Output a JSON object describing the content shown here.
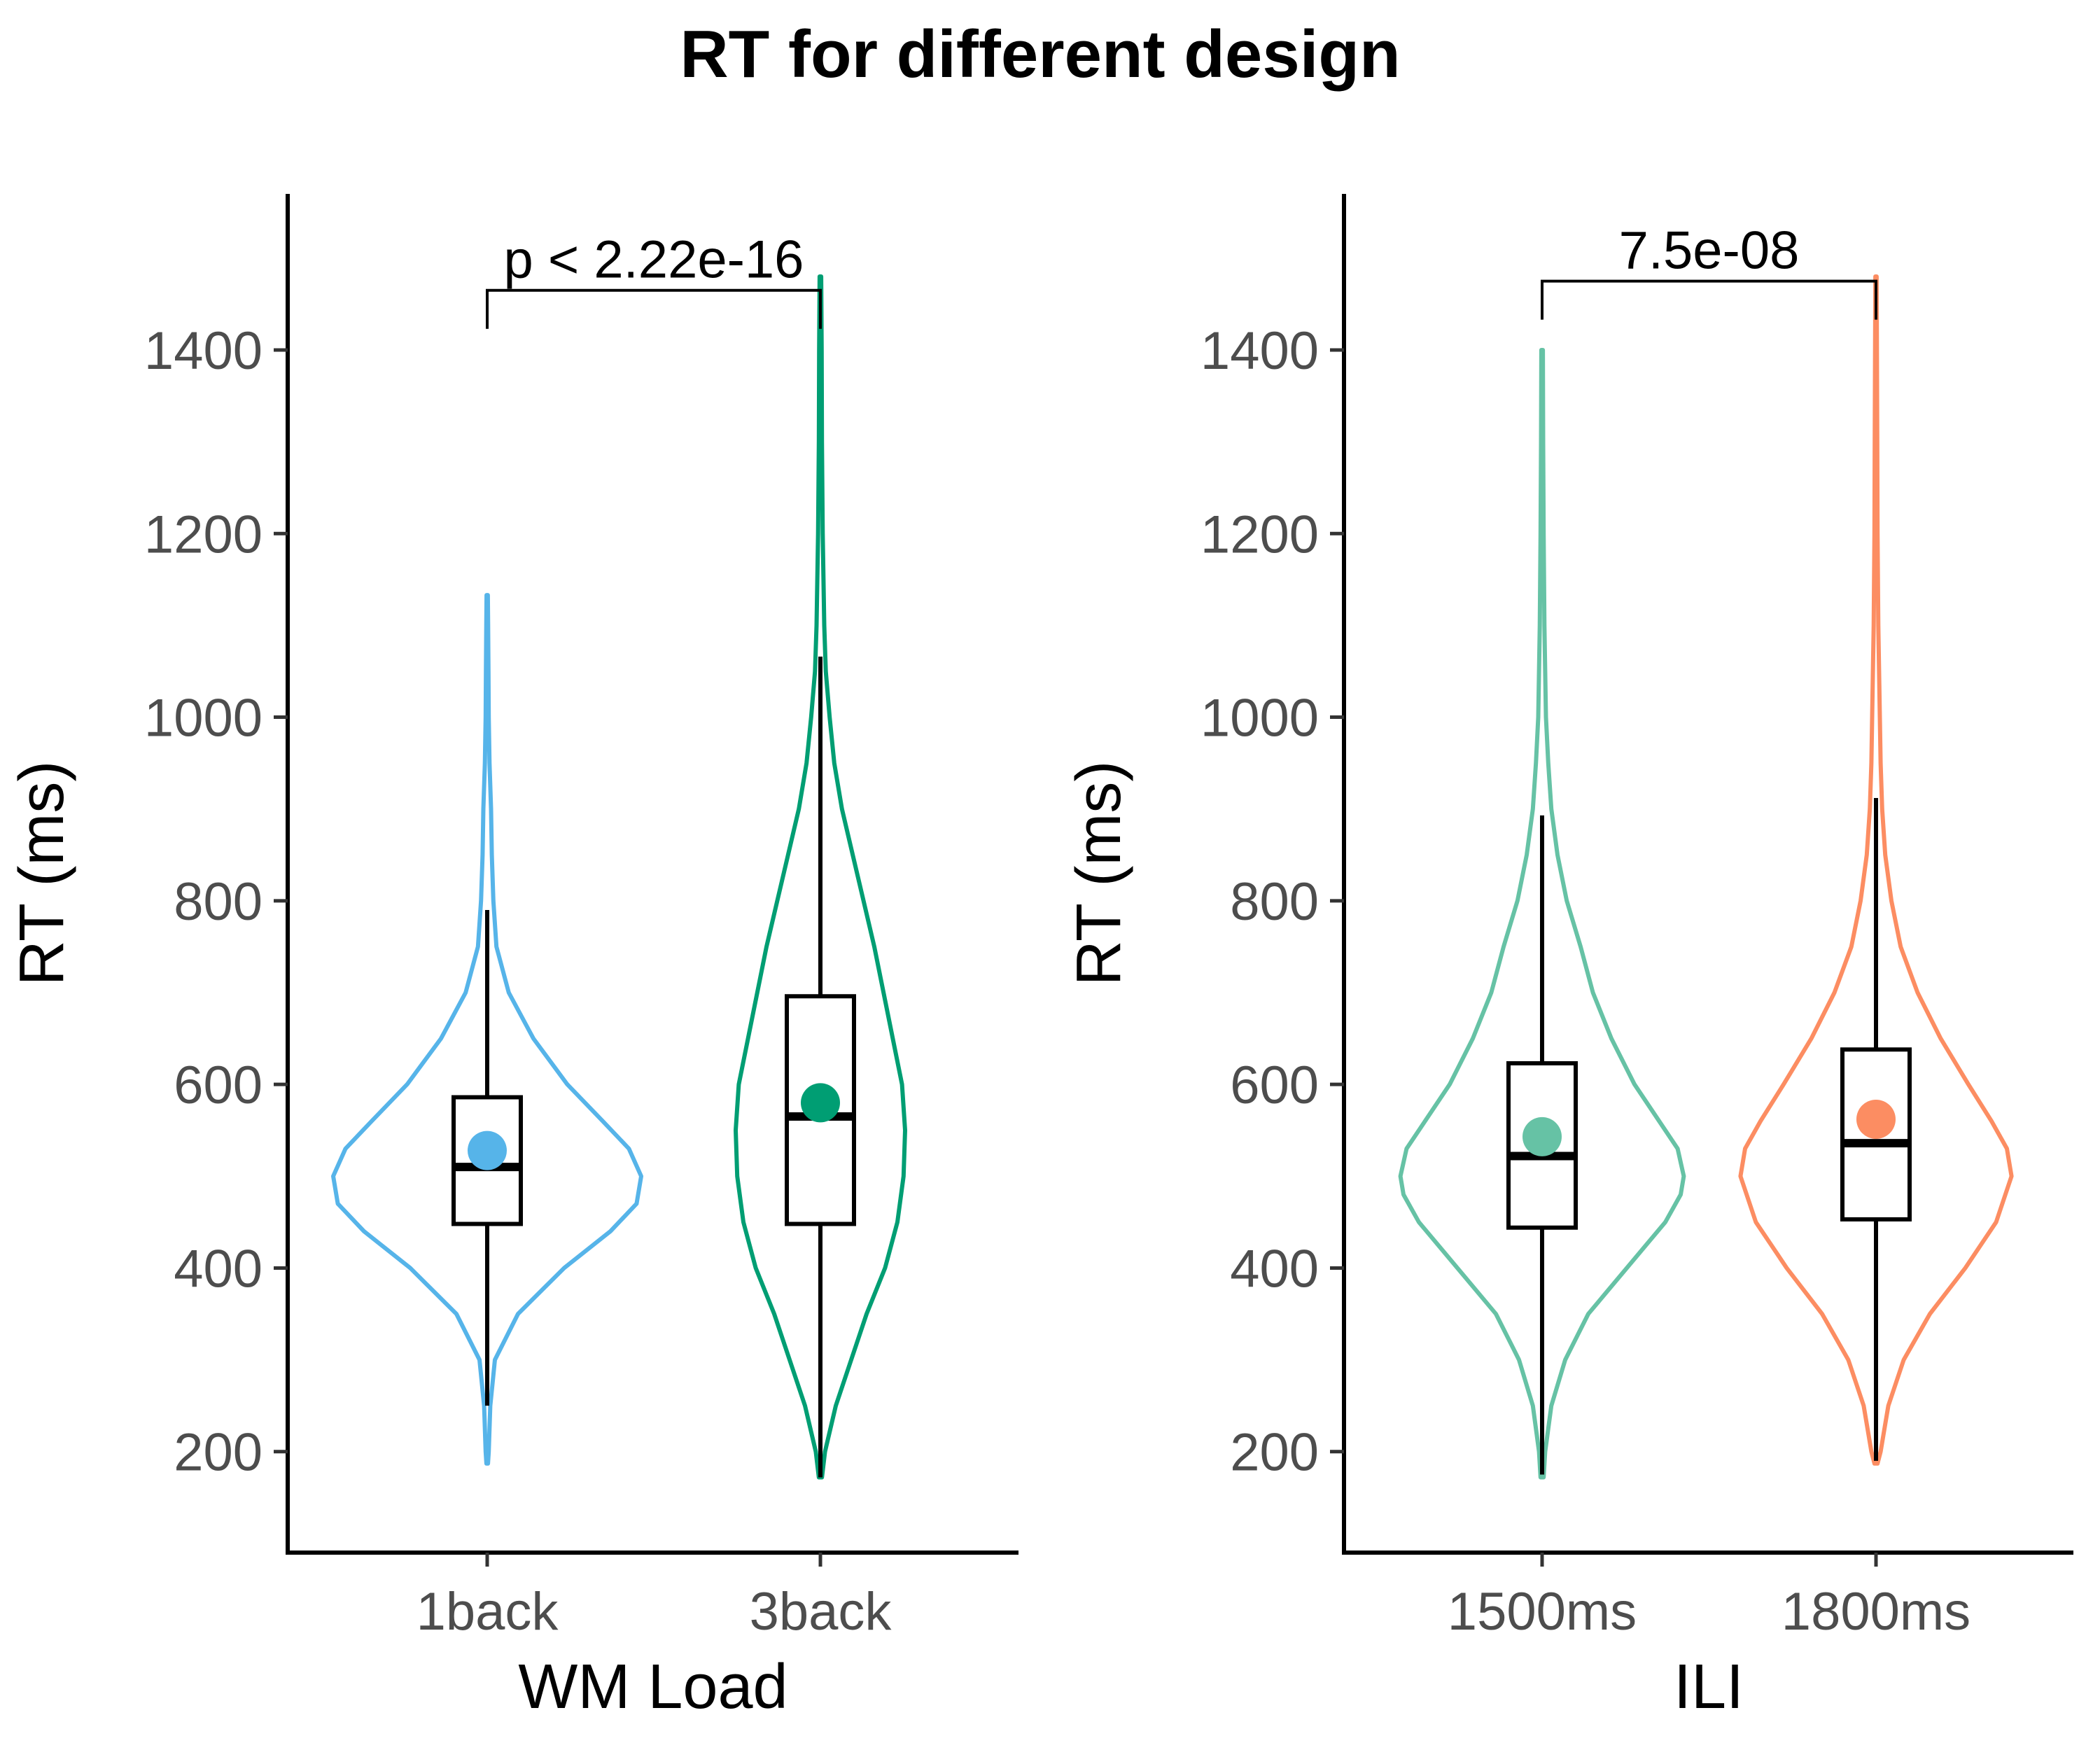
{
  "title": "RT for different design",
  "chart_data": [
    {
      "type": "violin",
      "xlabel": "WM Load",
      "ylabel": "RT (ms)",
      "ylim": [
        90,
        1570
      ],
      "yticks": [
        200,
        400,
        600,
        800,
        1000,
        1200,
        1400
      ],
      "categories": [
        "1back",
        "3back"
      ],
      "colors": [
        "#56B4E9",
        "#009E73"
      ],
      "comparison": {
        "label": "p < 2.22e-16",
        "y": 1465
      },
      "groups": [
        {
          "category": "1back",
          "mean": 528,
          "box": {
            "q1": 448,
            "median": 510,
            "q3": 586,
            "whisker_low": 250,
            "whisker_high": 790
          },
          "violin": [
            [
              187,
              0.005
            ],
            [
              200,
              0.01
            ],
            [
              250,
              0.02
            ],
            [
              300,
              0.05
            ],
            [
              350,
              0.2
            ],
            [
              400,
              0.5
            ],
            [
              440,
              0.8
            ],
            [
              470,
              0.97
            ],
            [
              500,
              1.0
            ],
            [
              530,
              0.92
            ],
            [
              560,
              0.75
            ],
            [
              600,
              0.52
            ],
            [
              650,
              0.3
            ],
            [
              700,
              0.14
            ],
            [
              750,
              0.06
            ],
            [
              800,
              0.04
            ],
            [
              850,
              0.03
            ],
            [
              900,
              0.025
            ],
            [
              950,
              0.015
            ],
            [
              1000,
              0.01
            ],
            [
              1050,
              0.008
            ],
            [
              1100,
              0.006
            ],
            [
              1133,
              0.004
            ]
          ]
        },
        {
          "category": "3back",
          "mean": 580,
          "box": {
            "q1": 448,
            "median": 565,
            "q3": 696,
            "whisker_low": 172,
            "whisker_high": 1066
          },
          "violin": [
            [
              172,
              0.01
            ],
            [
              200,
              0.03
            ],
            [
              250,
              0.1
            ],
            [
              300,
              0.2
            ],
            [
              350,
              0.3
            ],
            [
              400,
              0.42
            ],
            [
              450,
              0.5
            ],
            [
              500,
              0.54
            ],
            [
              550,
              0.55
            ],
            [
              600,
              0.53
            ],
            [
              650,
              0.47
            ],
            [
              700,
              0.41
            ],
            [
              750,
              0.35
            ],
            [
              800,
              0.28
            ],
            [
              850,
              0.21
            ],
            [
              900,
              0.14
            ],
            [
              950,
              0.09
            ],
            [
              1000,
              0.06
            ],
            [
              1050,
              0.035
            ],
            [
              1100,
              0.025
            ],
            [
              1200,
              0.015
            ],
            [
              1300,
              0.01
            ],
            [
              1400,
              0.008
            ],
            [
              1480,
              0.005
            ]
          ]
        }
      ]
    },
    {
      "type": "violin",
      "xlabel": "ILI",
      "ylabel": "RT (ms)",
      "ylim": [
        90,
        1570
      ],
      "yticks": [
        200,
        400,
        600,
        800,
        1000,
        1200,
        1400
      ],
      "categories": [
        "1500ms",
        "1800ms"
      ],
      "colors": [
        "#66C2A5",
        "#FC8D62"
      ],
      "comparison": {
        "label": "7.5e-08",
        "y": 1475
      },
      "groups": [
        {
          "category": "1500ms",
          "mean": 543,
          "box": {
            "q1": 444,
            "median": 522,
            "q3": 623,
            "whisker_low": 175,
            "whisker_high": 893
          },
          "violin": [
            [
              172,
              0.01
            ],
            [
              200,
              0.02
            ],
            [
              250,
              0.06
            ],
            [
              300,
              0.15
            ],
            [
              350,
              0.3
            ],
            [
              400,
              0.55
            ],
            [
              450,
              0.8
            ],
            [
              480,
              0.9
            ],
            [
              500,
              0.92
            ],
            [
              530,
              0.88
            ],
            [
              560,
              0.76
            ],
            [
              600,
              0.6
            ],
            [
              650,
              0.45
            ],
            [
              700,
              0.33
            ],
            [
              750,
              0.25
            ],
            [
              800,
              0.16
            ],
            [
              850,
              0.1
            ],
            [
              900,
              0.06
            ],
            [
              950,
              0.04
            ],
            [
              1000,
              0.025
            ],
            [
              1100,
              0.015
            ],
            [
              1200,
              0.01
            ],
            [
              1300,
              0.007
            ],
            [
              1400,
              0.005
            ]
          ]
        },
        {
          "category": "1800ms",
          "mean": 562,
          "box": {
            "q1": 453,
            "median": 536,
            "q3": 638,
            "whisker_low": 190,
            "whisker_high": 912
          },
          "violin": [
            [
              187,
              0.01
            ],
            [
              200,
              0.03
            ],
            [
              250,
              0.08
            ],
            [
              300,
              0.18
            ],
            [
              350,
              0.35
            ],
            [
              400,
              0.58
            ],
            [
              450,
              0.78
            ],
            [
              500,
              0.88
            ],
            [
              530,
              0.85
            ],
            [
              560,
              0.75
            ],
            [
              600,
              0.6
            ],
            [
              650,
              0.42
            ],
            [
              700,
              0.27
            ],
            [
              750,
              0.16
            ],
            [
              800,
              0.1
            ],
            [
              850,
              0.06
            ],
            [
              900,
              0.04
            ],
            [
              950,
              0.03
            ],
            [
              1000,
              0.025
            ],
            [
              1100,
              0.015
            ],
            [
              1200,
              0.01
            ],
            [
              1300,
              0.008
            ],
            [
              1400,
              0.006
            ],
            [
              1480,
              0.004
            ]
          ]
        }
      ]
    }
  ]
}
